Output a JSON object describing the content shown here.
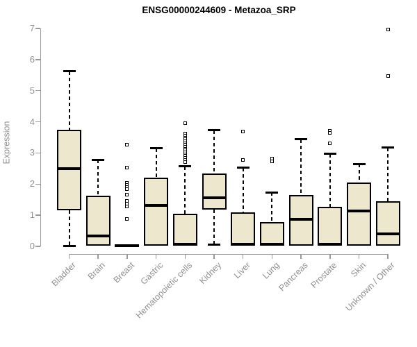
{
  "title": "ENSG00000244609 - Metazoa_SRP",
  "chart_data": {
    "type": "boxplot",
    "title": "ENSG00000244609 - Metazoa_SRP",
    "ylabel": "Expression",
    "xlabel": "",
    "ylim": [
      0,
      7
    ],
    "yticks": [
      0,
      1,
      2,
      3,
      4,
      5,
      6,
      7
    ],
    "grid": false,
    "legend": false,
    "categories": [
      "Bladder",
      "Brain",
      "Breast",
      "Gastric",
      "Hematopoietic cells",
      "Kidney",
      "Liver",
      "Lung",
      "Pancreas",
      "Prostate",
      "Skin",
      "Unknown / Other"
    ],
    "series": [
      {
        "category": "Bladder",
        "whislo": 0.02,
        "q1": 1.16,
        "med": 2.5,
        "q3": 3.74,
        "whishi": 5.62,
        "outliers": []
      },
      {
        "category": "Brain",
        "whislo": 0.02,
        "q1": 0.02,
        "med": 0.33,
        "q3": 1.63,
        "whishi": 2.78,
        "outliers": []
      },
      {
        "category": "Breast",
        "whislo": 0.0,
        "q1": 0.0,
        "med": 0.03,
        "q3": 0.06,
        "whishi": 0.06,
        "outliers": [
          3.27,
          2.52,
          2.05,
          1.97,
          1.9,
          1.83,
          1.67,
          1.46,
          1.38,
          1.28,
          0.87
        ]
      },
      {
        "category": "Gastric",
        "whislo": 0.02,
        "q1": 0.02,
        "med": 1.31,
        "q3": 2.2,
        "whishi": 3.15,
        "outliers": []
      },
      {
        "category": "Hematopoietic cells",
        "whislo": 0.02,
        "q1": 0.02,
        "med": 0.07,
        "q3": 1.05,
        "whishi": 2.57,
        "outliers": [
          3.95,
          3.62,
          3.56,
          3.5,
          3.44,
          3.38,
          3.32,
          3.26,
          3.2,
          3.14,
          3.08,
          3.02,
          2.96,
          2.9,
          2.84,
          2.78,
          2.7
        ]
      },
      {
        "category": "Kidney",
        "whislo": 0.05,
        "q1": 1.18,
        "med": 1.57,
        "q3": 2.33,
        "whishi": 3.73,
        "outliers": []
      },
      {
        "category": "Liver",
        "whislo": 0.02,
        "q1": 0.02,
        "med": 0.06,
        "q3": 1.1,
        "whishi": 2.53,
        "outliers": [
          3.68,
          2.78
        ]
      },
      {
        "category": "Lung",
        "whislo": 0.02,
        "q1": 0.02,
        "med": 0.06,
        "q3": 0.78,
        "whishi": 1.73,
        "outliers": [
          2.82,
          2.74
        ]
      },
      {
        "category": "Pancreas",
        "whislo": 0.02,
        "q1": 0.02,
        "med": 0.86,
        "q3": 1.66,
        "whishi": 3.44,
        "outliers": []
      },
      {
        "category": "Prostate",
        "whislo": 0.02,
        "q1": 0.02,
        "med": 0.06,
        "q3": 1.28,
        "whishi": 2.97,
        "outliers": [
          3.72,
          3.64,
          3.31
        ]
      },
      {
        "category": "Skin",
        "whislo": 0.02,
        "q1": 0.02,
        "med": 1.14,
        "q3": 2.06,
        "whishi": 2.65,
        "outliers": []
      },
      {
        "category": "Unknown / Other",
        "whislo": 0.02,
        "q1": 0.02,
        "med": 0.4,
        "q3": 1.44,
        "whishi": 3.17,
        "outliers": [
          6.96,
          5.47
        ]
      }
    ],
    "colors": {
      "box_fill": "#EDE8CD",
      "box_border": "#000000",
      "median": "#000000",
      "whisker": "#000000",
      "axis": "#999999",
      "tick_text": "#909090",
      "title_text": "#000000",
      "background": "#ffffff"
    }
  }
}
